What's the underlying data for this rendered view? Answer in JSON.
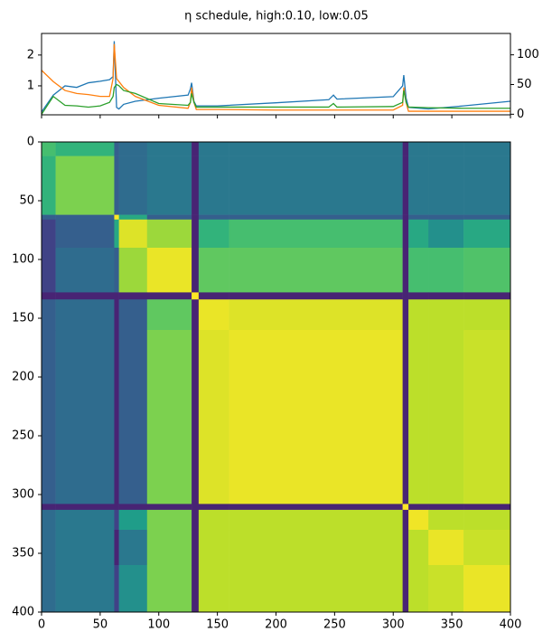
{
  "chart_data": [
    {
      "type": "line",
      "title": "η schedule, high:0.10, low:0.05",
      "x": [
        0,
        10,
        20,
        30,
        40,
        50,
        58,
        61,
        62,
        64,
        66,
        70,
        80,
        100,
        125,
        127,
        128,
        130,
        132,
        150,
        200,
        245,
        249,
        252,
        300,
        308,
        309,
        311,
        313,
        330,
        360,
        400
      ],
      "series": [
        {
          "color": "#1f77b4",
          "axis": "y",
          "values": [
            0.15,
            0.7,
            1.0,
            0.95,
            1.1,
            1.15,
            1.2,
            1.3,
            2.45,
            0.3,
            0.25,
            0.4,
            0.5,
            0.6,
            0.7,
            0.9,
            1.1,
            0.5,
            0.35,
            0.35,
            0.45,
            0.55,
            0.7,
            0.57,
            0.65,
            1.0,
            1.35,
            0.6,
            0.3,
            0.25,
            0.35,
            0.5
          ]
        },
        {
          "color": "#ff7f0e",
          "axis": "y2",
          "values": [
            74,
            55,
            40,
            35,
            33,
            30,
            30,
            60,
            118,
            60,
            55,
            45,
            30,
            15,
            10,
            20,
            45,
            20,
            8,
            8,
            7,
            7,
            7,
            7,
            7,
            15,
            45,
            20,
            5,
            5,
            5,
            5
          ]
        },
        {
          "color": "#2ca02c",
          "axis": "y2",
          "values": [
            0,
            30,
            15,
            14,
            12,
            14,
            20,
            30,
            45,
            50,
            48,
            40,
            35,
            18,
            15,
            20,
            35,
            20,
            12,
            12,
            12,
            12,
            18,
            12,
            13,
            20,
            40,
            20,
            12,
            11,
            10,
            10
          ]
        }
      ],
      "xlim": [
        0,
        400
      ],
      "ylim": [
        0.06,
        2.7
      ],
      "yticks": [
        1,
        2
      ],
      "y2lim": [
        -1,
        136
      ],
      "y2ticks": [
        0,
        50,
        100
      ]
    },
    {
      "type": "heatmap",
      "colormap": "viridis",
      "xbins": [
        0,
        12,
        62,
        66,
        90,
        128,
        134,
        160,
        308,
        313,
        330,
        360,
        400
      ],
      "ybins": [
        0,
        12,
        62,
        66,
        90,
        128,
        134,
        160,
        308,
        313,
        330,
        360,
        400
      ],
      "values": [
        [
          0.7,
          0.65,
          0.3,
          0.35,
          0.4,
          0.1,
          0.4,
          0.4,
          0.1,
          0.4,
          0.4,
          0.4
        ],
        [
          0.65,
          0.8,
          0.3,
          0.35,
          0.4,
          0.1,
          0.4,
          0.4,
          0.1,
          0.4,
          0.4,
          0.4
        ],
        [
          0.3,
          0.3,
          1.0,
          0.6,
          0.3,
          0.1,
          0.3,
          0.3,
          0.1,
          0.3,
          0.3,
          0.3
        ],
        [
          0.2,
          0.3,
          0.6,
          0.95,
          0.85,
          0.1,
          0.65,
          0.7,
          0.1,
          0.6,
          0.5,
          0.6
        ],
        [
          0.2,
          0.35,
          0.3,
          0.85,
          0.97,
          0.1,
          0.75,
          0.75,
          0.1,
          0.7,
          0.7,
          0.72
        ],
        [
          0.1,
          0.1,
          0.1,
          0.1,
          0.1,
          1.0,
          0.1,
          0.1,
          0.1,
          0.1,
          0.1,
          0.1
        ],
        [
          0.3,
          0.35,
          0.1,
          0.3,
          0.75,
          0.1,
          0.97,
          0.95,
          0.1,
          0.9,
          0.9,
          0.9
        ],
        [
          0.3,
          0.35,
          0.1,
          0.3,
          0.8,
          0.1,
          0.95,
          0.97,
          0.1,
          0.9,
          0.9,
          0.92
        ],
        [
          0.1,
          0.1,
          0.1,
          0.1,
          0.1,
          0.1,
          0.1,
          0.1,
          1.0,
          0.1,
          0.1,
          0.1
        ],
        [
          0.35,
          0.4,
          0.2,
          0.55,
          0.8,
          0.1,
          0.9,
          0.9,
          0.1,
          0.98,
          0.9,
          0.9
        ],
        [
          0.35,
          0.4,
          0.1,
          0.4,
          0.8,
          0.1,
          0.9,
          0.9,
          0.1,
          0.9,
          0.97,
          0.92
        ],
        [
          0.35,
          0.4,
          0.2,
          0.5,
          0.8,
          0.1,
          0.9,
          0.9,
          0.1,
          0.9,
          0.92,
          0.97
        ]
      ],
      "xlim": [
        0,
        400
      ],
      "ylim": [
        400,
        0
      ],
      "xticks": [
        0,
        50,
        100,
        150,
        200,
        250,
        300,
        350,
        400
      ],
      "yticks": [
        0,
        50,
        100,
        150,
        200,
        250,
        300,
        350,
        400
      ]
    }
  ]
}
